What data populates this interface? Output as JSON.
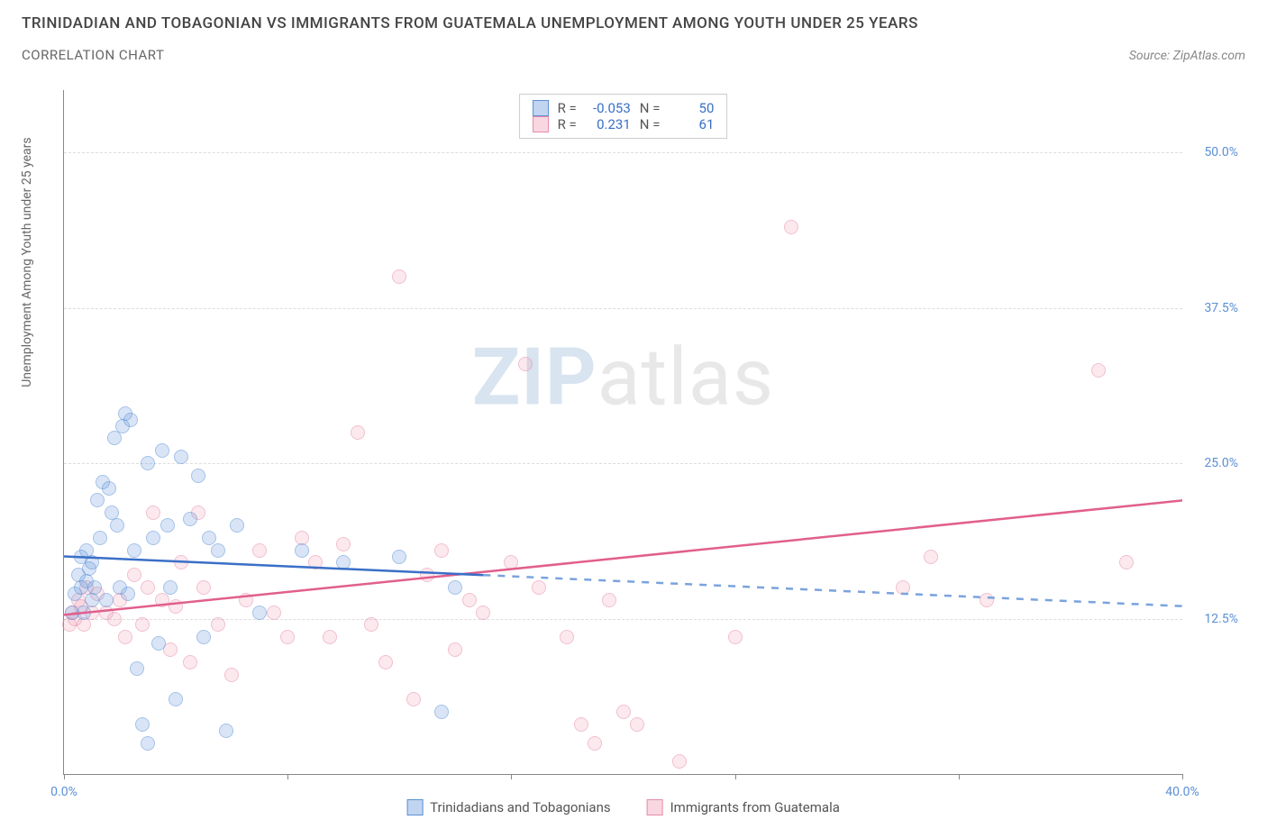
{
  "header": {
    "title": "TRINIDADIAN AND TOBAGONIAN VS IMMIGRANTS FROM GUATEMALA UNEMPLOYMENT AMONG YOUTH UNDER 25 YEARS",
    "subtitle": "CORRELATION CHART",
    "source": "Source: ZipAtlas.com"
  },
  "chart": {
    "type": "scatter",
    "y_axis_label": "Unemployment Among Youth under 25 years",
    "watermark_a": "ZIP",
    "watermark_b": "atlas",
    "xlim": [
      0,
      40
    ],
    "ylim": [
      0,
      55
    ],
    "xticks": [
      0,
      8,
      16,
      24,
      32,
      40
    ],
    "xtick_labels": {
      "0": "0.0%",
      "40": "40.0%"
    },
    "yticks": [
      12.5,
      25.0,
      37.5,
      50.0
    ],
    "ytick_labels": [
      "12.5%",
      "25.0%",
      "37.5%",
      "50.0%"
    ],
    "background_color": "#ffffff",
    "grid_color": "#dddddd",
    "axis_color": "#888888",
    "colors": {
      "blue_fill": "rgba(100,150,220,0.45)",
      "blue_stroke": "#5b8fd6",
      "blue_line": "#3a6fc7",
      "pink_fill": "rgba(235,140,170,0.35)",
      "pink_stroke": "#e88ba8",
      "pink_line": "#e15f8c",
      "tick_label": "#5b8fd6"
    },
    "legend_top": [
      {
        "swatch": "blue",
        "r_label": "R =",
        "r_value": "-0.053",
        "n_label": "N =",
        "n_value": "50"
      },
      {
        "swatch": "pink",
        "r_label": "R =",
        "r_value": "0.231",
        "n_label": "N =",
        "n_value": "61"
      }
    ],
    "legend_bottom": [
      {
        "swatch": "blue",
        "label": "Trinidadians and Tobagonians"
      },
      {
        "swatch": "pink",
        "label": "Immigrants from Guatemala"
      }
    ],
    "trend_lines": {
      "blue_solid": {
        "x1": 0,
        "y1": 17.5,
        "x2": 15,
        "y2": 16.0
      },
      "blue_dash": {
        "x1": 15,
        "y1": 16.0,
        "x2": 40,
        "y2": 13.5
      },
      "pink_solid": {
        "x1": 0,
        "y1": 12.8,
        "x2": 40,
        "y2": 22.0
      }
    },
    "series_blue": [
      [
        0.3,
        13
      ],
      [
        0.4,
        14.5
      ],
      [
        0.5,
        16
      ],
      [
        0.6,
        15
      ],
      [
        0.6,
        17.5
      ],
      [
        0.7,
        13
      ],
      [
        0.8,
        18
      ],
      [
        0.8,
        15.5
      ],
      [
        0.9,
        16.5
      ],
      [
        1.0,
        14
      ],
      [
        1.0,
        17
      ],
      [
        1.1,
        15
      ],
      [
        1.2,
        22
      ],
      [
        1.3,
        19
      ],
      [
        1.4,
        23.5
      ],
      [
        1.5,
        14
      ],
      [
        1.6,
        23
      ],
      [
        1.7,
        21
      ],
      [
        1.8,
        27
      ],
      [
        1.9,
        20
      ],
      [
        2.0,
        15
      ],
      [
        2.1,
        28
      ],
      [
        2.2,
        29
      ],
      [
        2.3,
        14.5
      ],
      [
        2.4,
        28.5
      ],
      [
        2.5,
        18
      ],
      [
        2.6,
        8.5
      ],
      [
        2.8,
        4
      ],
      [
        3.0,
        25
      ],
      [
        3.0,
        2.5
      ],
      [
        3.2,
        19
      ],
      [
        3.4,
        10.5
      ],
      [
        3.5,
        26
      ],
      [
        3.7,
        20
      ],
      [
        3.8,
        15
      ],
      [
        4.0,
        6
      ],
      [
        4.2,
        25.5
      ],
      [
        4.5,
        20.5
      ],
      [
        4.8,
        24
      ],
      [
        5.0,
        11
      ],
      [
        5.2,
        19
      ],
      [
        5.5,
        18
      ],
      [
        5.8,
        3.5
      ],
      [
        6.2,
        20
      ],
      [
        7.0,
        13
      ],
      [
        8.5,
        18
      ],
      [
        10.0,
        17
      ],
      [
        12.0,
        17.5
      ],
      [
        13.5,
        5
      ],
      [
        14.0,
        15
      ]
    ],
    "series_pink": [
      [
        0.2,
        12
      ],
      [
        0.3,
        13
      ],
      [
        0.4,
        12.5
      ],
      [
        0.5,
        14
      ],
      [
        0.6,
        13.5
      ],
      [
        0.7,
        12
      ],
      [
        0.8,
        15
      ],
      [
        1.0,
        13
      ],
      [
        1.2,
        14.5
      ],
      [
        1.5,
        13
      ],
      [
        1.8,
        12.5
      ],
      [
        2.0,
        14
      ],
      [
        2.2,
        11
      ],
      [
        2.5,
        16
      ],
      [
        2.8,
        12
      ],
      [
        3.0,
        15
      ],
      [
        3.2,
        21
      ],
      [
        3.5,
        14
      ],
      [
        3.8,
        10
      ],
      [
        4.0,
        13.5
      ],
      [
        4.2,
        17
      ],
      [
        4.5,
        9
      ],
      [
        4.8,
        21
      ],
      [
        5.0,
        15
      ],
      [
        5.5,
        12
      ],
      [
        6.0,
        8
      ],
      [
        6.5,
        14
      ],
      [
        7.0,
        18
      ],
      [
        7.5,
        13
      ],
      [
        8.0,
        11
      ],
      [
        8.5,
        19
      ],
      [
        9.0,
        17
      ],
      [
        9.5,
        11
      ],
      [
        10.0,
        18.5
      ],
      [
        10.5,
        27.5
      ],
      [
        11.0,
        12
      ],
      [
        11.5,
        9
      ],
      [
        12.0,
        40
      ],
      [
        12.5,
        6
      ],
      [
        13.0,
        16
      ],
      [
        13.5,
        18
      ],
      [
        14.0,
        10
      ],
      [
        14.5,
        14
      ],
      [
        15.0,
        13
      ],
      [
        16.0,
        17
      ],
      [
        16.5,
        33
      ],
      [
        17.0,
        15
      ],
      [
        18.0,
        11
      ],
      [
        18.5,
        4
      ],
      [
        19.0,
        2.5
      ],
      [
        19.5,
        14
      ],
      [
        20.0,
        5
      ],
      [
        20.5,
        4
      ],
      [
        22.0,
        1
      ],
      [
        24.0,
        11
      ],
      [
        26.0,
        44
      ],
      [
        30.0,
        15
      ],
      [
        31.0,
        17.5
      ],
      [
        33.0,
        14
      ],
      [
        37.0,
        32.5
      ],
      [
        38.0,
        17
      ]
    ]
  }
}
